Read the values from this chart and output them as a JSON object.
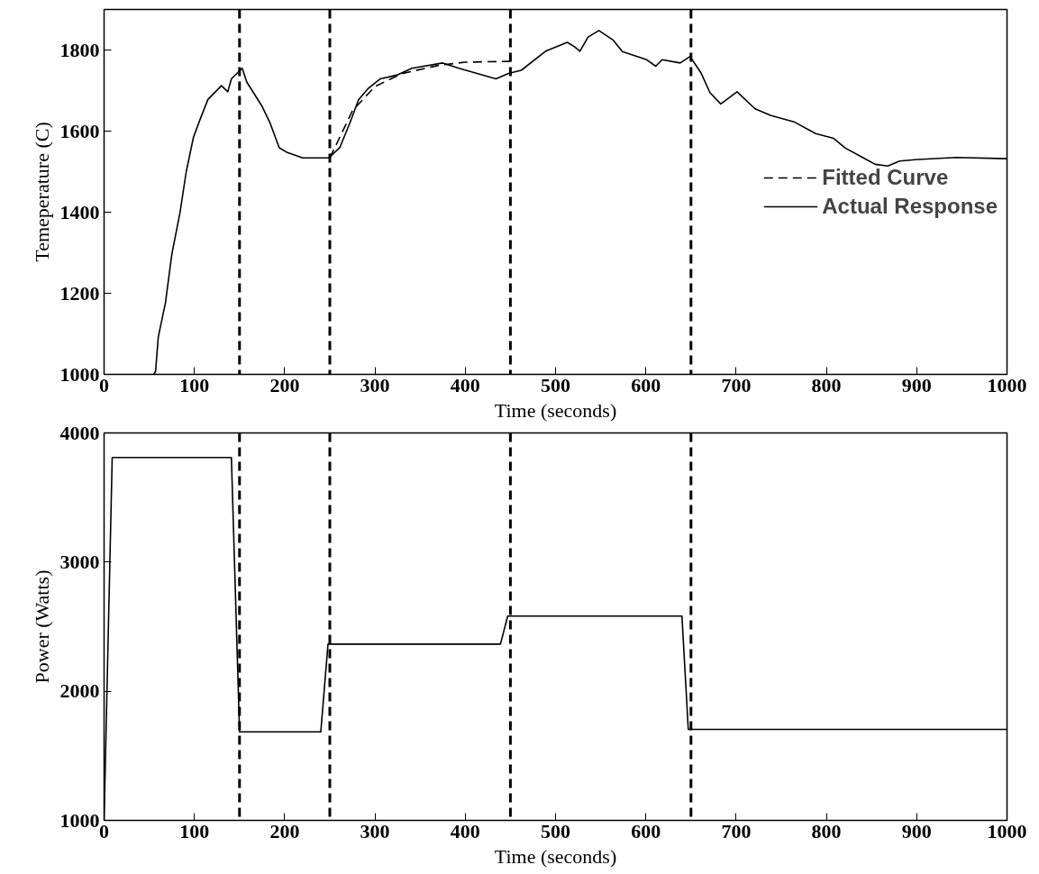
{
  "chart_data": [
    {
      "type": "line",
      "xlabel": "Time (seconds)",
      "ylabel": "Temeperature (C)",
      "xlim": [
        0,
        1000
      ],
      "ylim": [
        1000,
        1900
      ],
      "xticks": [
        0,
        100,
        200,
        300,
        400,
        500,
        600,
        700,
        800,
        900,
        1000
      ],
      "yticks": [
        1000,
        1200,
        1400,
        1600,
        1800
      ],
      "grid": false,
      "legend": "right",
      "series": [
        {
          "name": "Fitted Curve",
          "color": "#000000",
          "line_style": "dashed",
          "x": [
            250,
            260,
            275,
            300,
            330,
            370,
            400,
            450
          ],
          "values": [
            1534,
            1580,
            1650,
            1710,
            1742,
            1762,
            1770,
            1772
          ]
        },
        {
          "name": "Actual Response",
          "color": "#000000",
          "line_style": "solid",
          "x": [
            55,
            57,
            60,
            68,
            75,
            84,
            91,
            99,
            106,
            115,
            130,
            137,
            141,
            153,
            158,
            175,
            184,
            194,
            203,
            220,
            249,
            261,
            272,
            282,
            292,
            306,
            324,
            341,
            375,
            393,
            420,
            434,
            448,
            462,
            489,
            513,
            521,
            527,
            536,
            548,
            564,
            574,
            601,
            611,
            618,
            638,
            649,
            661,
            671,
            683,
            701,
            721,
            738,
            764,
            788,
            808,
            821,
            841,
            854,
            868,
            881,
            901,
            944,
            1000
          ],
          "values": [
            1000,
            1007,
            1092,
            1177,
            1296,
            1398,
            1500,
            1585,
            1627,
            1678,
            1712,
            1697,
            1729,
            1755,
            1721,
            1661,
            1619,
            1559,
            1547,
            1534,
            1534,
            1559,
            1619,
            1678,
            1704,
            1729,
            1738,
            1755,
            1768,
            1755,
            1738,
            1729,
            1742,
            1750,
            1797,
            1819,
            1808,
            1797,
            1832,
            1848,
            1824,
            1796,
            1776,
            1760,
            1776,
            1768,
            1784,
            1744,
            1695,
            1667,
            1697,
            1655,
            1639,
            1623,
            1594,
            1582,
            1558,
            1534,
            1518,
            1514,
            1526,
            1530,
            1535,
            1532
          ]
        }
      ],
      "ref_lines": [
        {
          "axis": "x",
          "value": 150,
          "line_style": "dashed",
          "color": "#000000"
        },
        {
          "axis": "x",
          "value": 250,
          "line_style": "dashed",
          "color": "#000000"
        },
        {
          "axis": "x",
          "value": 450,
          "line_style": "dashed",
          "color": "#000000"
        },
        {
          "axis": "x",
          "value": 650,
          "line_style": "dashed",
          "color": "#000000"
        }
      ]
    },
    {
      "type": "line",
      "xlabel": "Time (seconds)",
      "ylabel": "Power (Watts)",
      "xlim": [
        0,
        1000
      ],
      "ylim": [
        1000,
        4000
      ],
      "xticks": [
        0,
        100,
        200,
        300,
        400,
        500,
        600,
        700,
        800,
        900,
        1000
      ],
      "yticks": [
        1000,
        2000,
        3000,
        4000
      ],
      "grid": false,
      "series": [
        {
          "color": "#000000",
          "line_style": "solid",
          "x": [
            0,
            9,
            141,
            150,
            240,
            248,
            439,
            447,
            640,
            647,
            1000
          ],
          "values": [
            1000,
            3810,
            3810,
            1685,
            1685,
            2365,
            2365,
            2582,
            2582,
            1705,
            1705
          ]
        }
      ],
      "ref_lines": [
        {
          "axis": "x",
          "value": 150,
          "line_style": "dashed",
          "color": "#000000"
        },
        {
          "axis": "x",
          "value": 250,
          "line_style": "dashed",
          "color": "#000000"
        },
        {
          "axis": "x",
          "value": 450,
          "line_style": "dashed",
          "color": "#000000"
        },
        {
          "axis": "x",
          "value": 650,
          "line_style": "dashed",
          "color": "#000000"
        }
      ]
    }
  ]
}
